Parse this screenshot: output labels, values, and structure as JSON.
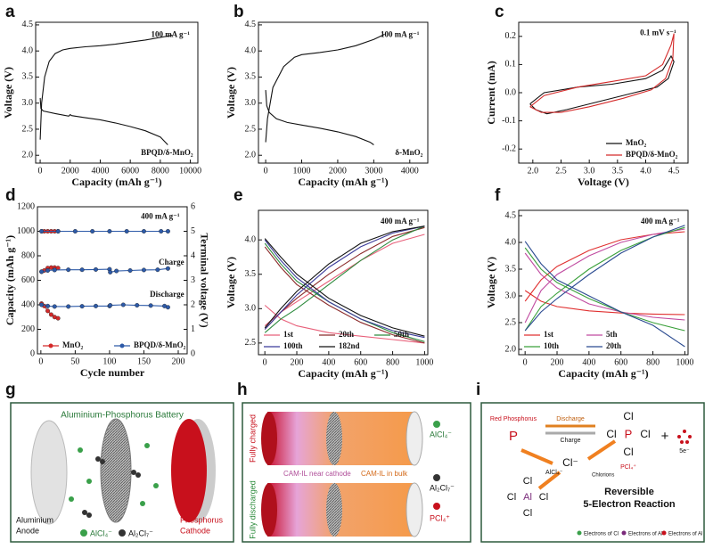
{
  "chart_data": [
    {
      "type": "line",
      "panel": "a",
      "xlabel": "Capacity (mAh g⁻¹)",
      "ylabel": "Voltage (V)",
      "xlim": [
        -300,
        10500
      ],
      "ylim": [
        1.85,
        4.55
      ],
      "xticks": [
        0,
        2000,
        4000,
        6000,
        8000,
        10000
      ],
      "yticks": [
        {
          "value": 2,
          "label": "2.0"
        },
        2.5,
        {
          "value": 3,
          "label": "3.0"
        },
        3.5,
        {
          "value": 4,
          "label": "4.0"
        },
        4.5
      ],
      "annotations": [
        "100 mA g⁻¹",
        "BPQD/δ-MnO₂"
      ],
      "series": [
        {
          "color": "#111111",
          "x": [
            0,
            100,
            300,
            600,
            1000,
            1500,
            2000,
            3000,
            4000,
            5000,
            6000,
            7000,
            8000,
            8800
          ],
          "values": [
            2.3,
            3.0,
            3.5,
            3.8,
            3.95,
            4.02,
            4.05,
            4.08,
            4.1,
            4.13,
            4.17,
            4.21,
            4.26,
            4.3
          ]
        },
        {
          "color": "#111111",
          "x": [
            0,
            50,
            200,
            1000,
            1900,
            2000,
            2100,
            3000,
            4000,
            5000,
            6000,
            7000,
            8000,
            8500
          ],
          "values": [
            3.1,
            2.9,
            2.85,
            2.8,
            2.75,
            2.78,
            2.76,
            2.72,
            2.68,
            2.62,
            2.55,
            2.47,
            2.35,
            2.2
          ]
        }
      ]
    },
    {
      "type": "line",
      "panel": "b",
      "xlabel": "Capacity (mAh g⁻¹)",
      "ylabel": "Voltage (V)",
      "xlim": [
        -200,
        4500
      ],
      "ylim": [
        1.85,
        4.55
      ],
      "xticks": [
        0,
        1000,
        2000,
        3000,
        4000
      ],
      "yticks": [
        {
          "value": 2,
          "label": "2.0"
        },
        2.5,
        {
          "value": 3,
          "label": "3.0"
        },
        3.5,
        {
          "value": 4,
          "label": "4.0"
        },
        4.5
      ],
      "annotations": [
        "100 mA g⁻¹",
        "δ-MnO₂"
      ],
      "series": [
        {
          "color": "#111111",
          "x": [
            0,
            50,
            200,
            500,
            800,
            1000,
            1500,
            2000,
            2500,
            3000,
            3300
          ],
          "values": [
            2.25,
            2.7,
            3.3,
            3.7,
            3.88,
            3.93,
            3.97,
            4.02,
            4.1,
            4.22,
            4.32
          ]
        },
        {
          "color": "#111111",
          "x": [
            0,
            30,
            100,
            300,
            600,
            1000,
            1500,
            2000,
            2500,
            2900,
            3000
          ],
          "values": [
            3.25,
            2.95,
            2.82,
            2.7,
            2.63,
            2.58,
            2.52,
            2.45,
            2.36,
            2.25,
            2.2
          ]
        }
      ]
    },
    {
      "type": "line",
      "panel": "c",
      "xlabel": "Voltage (V)",
      "ylabel": "Current (mA)",
      "xlim": [
        1.75,
        4.75
      ],
      "ylim": [
        -0.25,
        0.25
      ],
      "xticks": [
        {
          "value": 2,
          "label": "2.0"
        },
        2.5,
        {
          "value": 3,
          "label": "3.0"
        },
        3.5,
        {
          "value": 4,
          "label": "4.0"
        },
        4.5
      ],
      "yticks": [
        -0.2,
        -0.1,
        {
          "value": 0,
          "label": "0.0"
        },
        0.1,
        0.2
      ],
      "annotations": [
        "0.1 mV s⁻¹"
      ],
      "legend": "lower right",
      "series": [
        {
          "name": "MnO₂",
          "color": "#111111",
          "x": [
            1.95,
            2.2,
            2.8,
            3.4,
            4.0,
            4.3,
            4.45,
            4.5,
            4.4,
            4.2,
            3.8,
            3.2,
            2.6,
            2.25,
            2.05,
            1.95
          ],
          "values": [
            -0.04,
            0.0,
            0.02,
            0.03,
            0.05,
            0.08,
            0.13,
            0.11,
            0.05,
            0.02,
            0.0,
            -0.03,
            -0.06,
            -0.075,
            -0.06,
            -0.04
          ]
        },
        {
          "name": "BPQD/δ-MnO₂",
          "color": "#d42a2a",
          "x": [
            1.95,
            2.2,
            2.8,
            3.4,
            4.0,
            4.3,
            4.45,
            4.5,
            4.48,
            4.35,
            4.1,
            3.6,
            3.0,
            2.5,
            2.15,
            1.95
          ],
          "values": [
            -0.05,
            -0.01,
            0.02,
            0.04,
            0.06,
            0.1,
            0.17,
            0.21,
            0.12,
            0.05,
            0.01,
            -0.02,
            -0.05,
            -0.07,
            -0.07,
            -0.05
          ]
        }
      ]
    },
    {
      "type": "line",
      "panel": "d",
      "xlabel": "Cycle number",
      "ylabel": "Capacity (mAh g⁻¹)",
      "y2label": "Terminal voltage (V)",
      "xlim": [
        -5,
        213
      ],
      "ylim": [
        0,
        1200
      ],
      "y2lim": [
        0,
        6
      ],
      "xticks": [
        0,
        50,
        100,
        150,
        200
      ],
      "yticks": [
        0,
        200,
        400,
        600,
        800,
        1000,
        1200
      ],
      "y2ticks": [
        0,
        1,
        2,
        3,
        4,
        5,
        6
      ],
      "annotations": [
        "400 mA g⁻¹",
        "Charge",
        "Discharge"
      ],
      "legend": "lower left",
      "series": [
        {
          "name": "MnO₂",
          "color": "#d42a2a",
          "marker": "circle",
          "x": [
            1,
            5,
            10,
            15,
            20,
            25
          ],
          "values": [
            1000,
            1000,
            1000,
            1000,
            1000,
            1000
          ]
        },
        {
          "name": "BPQD/δ-MnO₂",
          "color": "#2d5aa8",
          "marker": "circle",
          "x": [
            1,
            25,
            50,
            75,
            100,
            125,
            150,
            175,
            185
          ],
          "values": [
            1000,
            1000,
            1000,
            1000,
            1000,
            1000,
            1000,
            1000,
            1000
          ]
        },
        {
          "color": "#d42a2a",
          "marker": "circle",
          "axis": "y2",
          "x": [
            1,
            5,
            10,
            15,
            20,
            25
          ],
          "values": [
            3.35,
            3.4,
            3.5,
            3.52,
            3.52,
            3.5
          ]
        },
        {
          "color": "#d42a2a",
          "marker": "circle",
          "axis": "y2",
          "x": [
            1,
            5,
            10,
            15,
            20,
            25
          ],
          "values": [
            2.05,
            1.95,
            1.75,
            1.6,
            1.5,
            1.45
          ]
        },
        {
          "color": "#2d5aa8",
          "marker": "circle",
          "axis": "y2",
          "x": [
            1,
            10,
            20,
            40,
            60,
            80,
            100,
            101,
            110,
            130,
            150,
            170,
            185
          ],
          "values": [
            3.35,
            3.4,
            3.42,
            3.43,
            3.43,
            3.44,
            3.45,
            3.33,
            3.38,
            3.4,
            3.42,
            3.43,
            3.48
          ]
        },
        {
          "color": "#2d5aa8",
          "marker": "circle",
          "axis": "y2",
          "x": [
            1,
            10,
            20,
            40,
            60,
            80,
            100,
            101,
            120,
            140,
            160,
            180,
            185
          ],
          "values": [
            2.0,
            1.95,
            1.93,
            1.93,
            1.94,
            1.95,
            1.95,
            1.98,
            2.0,
            1.98,
            1.97,
            1.95,
            1.9
          ]
        }
      ]
    },
    {
      "type": "line",
      "panel": "e",
      "xlabel": "Capacity (mAh g⁻¹)",
      "ylabel": "Voltage (V)",
      "xlim": [
        -40,
        1020
      ],
      "ylim": [
        2.33,
        4.43
      ],
      "xticks": [
        0,
        200,
        400,
        600,
        800,
        1000
      ],
      "yticks": [
        2.5,
        {
          "value": 3,
          "label": "3.0"
        },
        3.5,
        {
          "value": 4,
          "label": "4.0"
        }
      ],
      "annotations": [
        "400 mA g⁻¹"
      ],
      "legend": "lower left",
      "series": [
        {
          "name": "1st",
          "color": "#e8607a",
          "x": [
            0,
            100,
            200,
            400,
            600,
            800,
            1000,
            null,
            0,
            100,
            200,
            400,
            600,
            800,
            1000
          ],
          "values": [
            2.75,
            2.95,
            3.1,
            3.4,
            3.7,
            3.95,
            4.08,
            null,
            3.05,
            2.85,
            2.75,
            2.65,
            2.6,
            2.55,
            2.5
          ]
        },
        {
          "name": "20th",
          "color": "#8b2a2a",
          "x": [
            0,
            100,
            200,
            400,
            600,
            800,
            1000,
            null,
            0,
            100,
            200,
            400,
            600,
            800,
            1000
          ],
          "values": [
            2.7,
            2.95,
            3.15,
            3.5,
            3.8,
            4.05,
            4.18,
            null,
            3.9,
            3.6,
            3.35,
            3.05,
            2.8,
            2.62,
            2.5
          ]
        },
        {
          "name": "50th",
          "color": "#2e8b3e",
          "x": [
            0,
            100,
            200,
            400,
            600,
            800,
            1000,
            null,
            0,
            100,
            200,
            400,
            600,
            800,
            1000
          ],
          "values": [
            2.65,
            2.85,
            3.0,
            3.35,
            3.7,
            4.0,
            4.2,
            null,
            3.95,
            3.65,
            3.4,
            3.1,
            2.85,
            2.65,
            2.52
          ]
        },
        {
          "name": "100th",
          "color": "#3b3b9a",
          "x": [
            0,
            100,
            200,
            400,
            600,
            800,
            1000,
            null,
            0,
            100,
            200,
            400,
            600,
            800,
            1000
          ],
          "values": [
            2.7,
            2.95,
            3.2,
            3.6,
            3.9,
            4.1,
            4.2,
            null,
            4.0,
            3.7,
            3.45,
            3.1,
            2.85,
            2.68,
            2.58
          ]
        },
        {
          "name": "182nd",
          "color": "#111111",
          "x": [
            0,
            100,
            200,
            400,
            600,
            800,
            1000,
            null,
            0,
            100,
            200,
            400,
            600,
            800,
            1000
          ],
          "values": [
            2.72,
            3.0,
            3.25,
            3.65,
            3.95,
            4.12,
            4.2,
            null,
            4.02,
            3.75,
            3.5,
            3.15,
            2.9,
            2.72,
            2.6
          ]
        }
      ]
    },
    {
      "type": "line",
      "panel": "f",
      "xlabel": "Capacity (mAh g⁻¹)",
      "ylabel": "Voltage (V)",
      "xlim": [
        -40,
        1020
      ],
      "ylim": [
        1.9,
        4.6
      ],
      "xticks": [
        0,
        200,
        400,
        600,
        800,
        1000
      ],
      "yticks": [
        {
          "value": 2,
          "label": "2.0"
        },
        2.5,
        {
          "value": 3,
          "label": "3.0"
        },
        3.5,
        {
          "value": 4,
          "label": "4.0"
        },
        4.5
      ],
      "annotations": [
        "400 mA g⁻¹"
      ],
      "legend": "lower left",
      "series": [
        {
          "name": "1st",
          "color": "#e03030",
          "x": [
            0,
            100,
            200,
            400,
            600,
            800,
            1000,
            null,
            0,
            100,
            200,
            400,
            600,
            800,
            1000
          ],
          "values": [
            2.9,
            3.3,
            3.55,
            3.85,
            4.05,
            4.15,
            4.2,
            null,
            3.1,
            2.9,
            2.8,
            2.72,
            2.68,
            2.66,
            2.65
          ]
        },
        {
          "name": "5th",
          "color": "#c04aa0",
          "x": [
            0,
            100,
            200,
            400,
            600,
            800,
            1000,
            null,
            0,
            100,
            200,
            400,
            600,
            800,
            1000
          ],
          "values": [
            2.5,
            3.1,
            3.4,
            3.75,
            4.0,
            4.15,
            4.25,
            null,
            3.8,
            3.4,
            3.15,
            2.85,
            2.7,
            2.6,
            2.55
          ]
        },
        {
          "name": "10th",
          "color": "#3aa03a",
          "x": [
            0,
            100,
            200,
            400,
            600,
            800,
            1000,
            null,
            0,
            100,
            200,
            400,
            600,
            800,
            1000
          ],
          "values": [
            2.35,
            2.8,
            3.05,
            3.5,
            3.85,
            4.1,
            4.28,
            null,
            3.9,
            3.5,
            3.25,
            2.95,
            2.7,
            2.5,
            2.35
          ]
        },
        {
          "name": "20th",
          "color": "#2a4a90",
          "x": [
            0,
            100,
            200,
            400,
            600,
            800,
            1000,
            null,
            0,
            100,
            200,
            400,
            600,
            800,
            1000
          ],
          "values": [
            2.35,
            2.7,
            2.95,
            3.4,
            3.8,
            4.1,
            4.32,
            null,
            4.02,
            3.6,
            3.3,
            3.0,
            2.7,
            2.45,
            2.05
          ]
        }
      ]
    }
  ],
  "diagrams": [
    {
      "panel": "g",
      "title": "Aluminium-Phosphorus Battery",
      "anode": [
        "Aluminium",
        "Anode"
      ],
      "cathode": [
        "Phosphorus",
        "Cathode"
      ],
      "legend": [
        "AlCl₄⁻",
        "Al₂Cl₇⁻"
      ]
    },
    {
      "panel": "h",
      "top": "Fully charged",
      "bottom": "Fully discharged",
      "labels": [
        "CAM-IL near cathode",
        "CAM-IL in bulk"
      ],
      "legend": [
        "AlCl₄⁻",
        "Al₂Cl₇⁻",
        "PCl₄⁺"
      ]
    },
    {
      "panel": "i",
      "red_p": "Red Phosphorus",
      "discharge": "Discharge",
      "charge": "Charge",
      "chloride": "Cl⁻",
      "chlorions": "Chlorions",
      "alcl4": "AlCl₄⁻",
      "pcl4": "PCl₄⁺",
      "plus": "+",
      "electrons": "5e⁻",
      "reaction": [
        "Reversible",
        "5-Electron Reaction"
      ],
      "atoms": {
        "p": "P",
        "cl": "Cl",
        "al": "Al"
      },
      "legend": [
        "Electrons of Cl",
        "Electrons of Al",
        "Electrons of Al"
      ]
    }
  ]
}
